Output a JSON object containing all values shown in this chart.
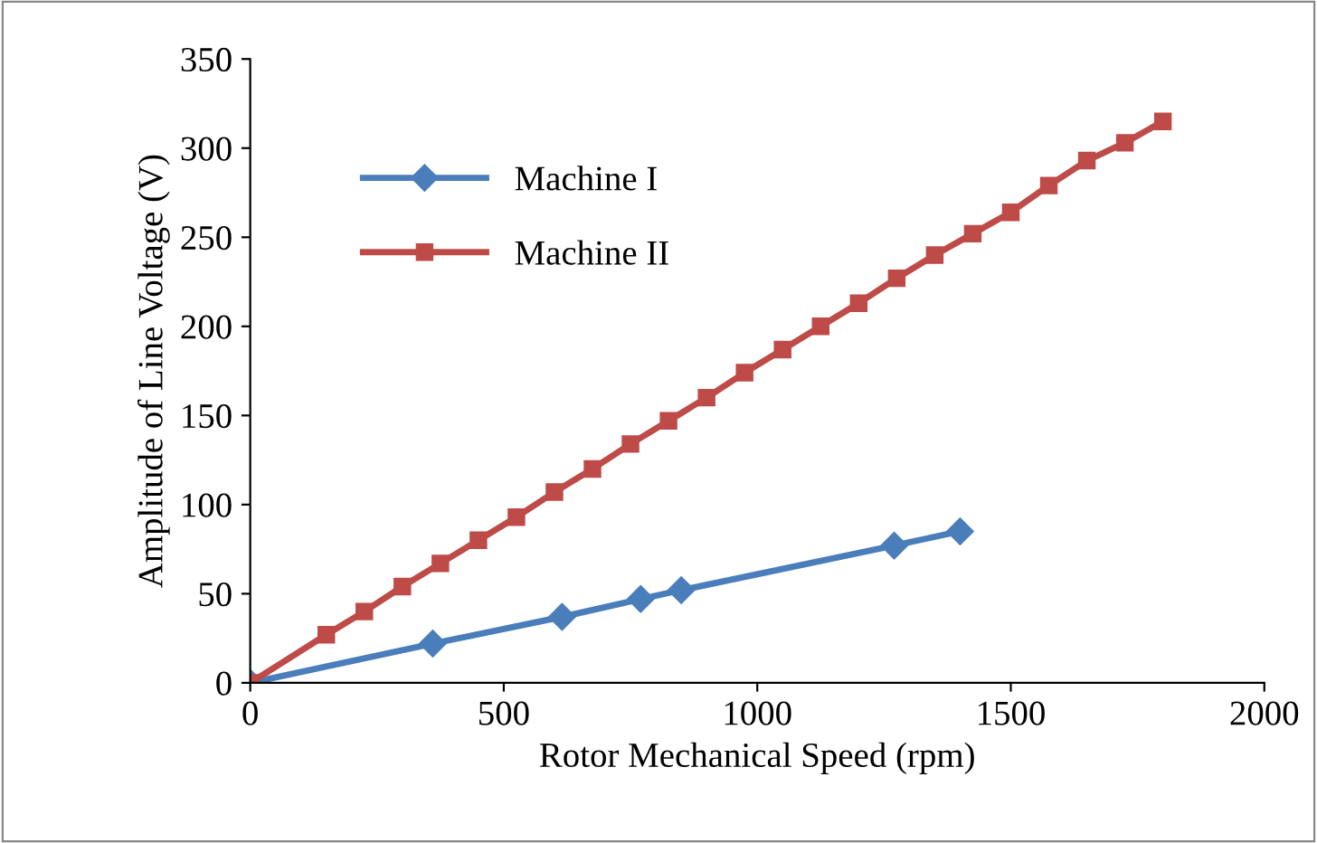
{
  "chart_data": {
    "type": "line",
    "xlabel": "Rotor Mechanical Speed (rpm)",
    "ylabel": "Amplitude of Line Voltage (V)",
    "xlim": [
      0,
      2000
    ],
    "xticks": [
      0,
      500,
      1000,
      1500,
      2000
    ],
    "ylim": [
      0,
      350
    ],
    "yticks": [
      0,
      50,
      100,
      150,
      200,
      250,
      300,
      350
    ],
    "grid": false,
    "legend": "top left",
    "series": [
      {
        "name": "Machine I",
        "color": "#4a7ebb",
        "marker": "diamond",
        "x": [
          0,
          360,
          615,
          770,
          850,
          1270,
          1400
        ],
        "values": [
          0,
          22,
          37,
          47,
          52,
          77,
          85
        ]
      },
      {
        "name": "Machine II",
        "color": "#be4b48",
        "marker": "square",
        "x": [
          0,
          150,
          225,
          300,
          375,
          450,
          525,
          600,
          675,
          750,
          825,
          900,
          975,
          1050,
          1125,
          1200,
          1275,
          1350,
          1425,
          1500,
          1575,
          1650,
          1725,
          1800
        ],
        "values": [
          0,
          27,
          40,
          54,
          67,
          80,
          93,
          107,
          120,
          134,
          147,
          160,
          174,
          187,
          200,
          213,
          227,
          240,
          252,
          264,
          279,
          293,
          303,
          315
        ]
      }
    ]
  }
}
